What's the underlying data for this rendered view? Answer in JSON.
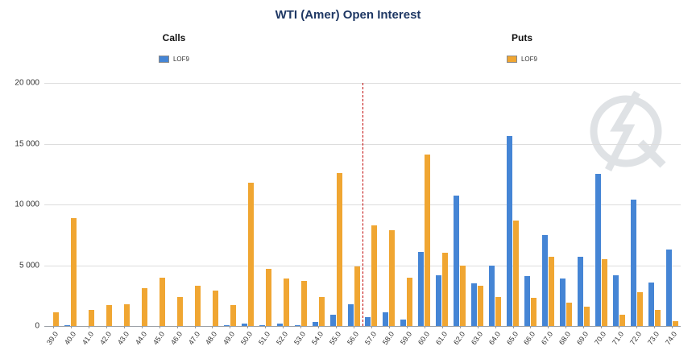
{
  "header": {
    "title": "WTI (Amer) Open Interest"
  },
  "legend": {
    "calls_label": "Calls",
    "puts_label": "Puts",
    "calls_series": "LOF9",
    "puts_series": "LOF9",
    "calls_color": "#4585D5",
    "puts_color": "#F0A632"
  },
  "chart_data": {
    "type": "bar",
    "title": "WTI (Amer) Open Interest",
    "xlabel": "",
    "ylabel": "",
    "ylim": [
      0,
      20000
    ],
    "ytick_labels": [
      "0",
      "5 000",
      "10 000",
      "15 000",
      "20 000"
    ],
    "grid": true,
    "legend_position": "top",
    "categories": [
      "39.0",
      "40.0",
      "41.0",
      "42.0",
      "43.0",
      "44.0",
      "45.0",
      "46.0",
      "47.0",
      "48.0",
      "49.0",
      "50.0",
      "51.0",
      "52.0",
      "53.0",
      "54.0",
      "55.0",
      "56.0",
      "57.0",
      "58.0",
      "59.0",
      "60.0",
      "61.0",
      "62.0",
      "63.0",
      "64.0",
      "65.0",
      "66.0",
      "67.0",
      "68.0",
      "69.0",
      "70.0",
      "71.0",
      "72.0",
      "73.0",
      "74.0"
    ],
    "series": [
      {
        "name": "Calls LOF9",
        "color": "#4585D5",
        "values": [
          0,
          100,
          0,
          0,
          0,
          0,
          0,
          0,
          0,
          0,
          100,
          200,
          100,
          200,
          100,
          300,
          900,
          1800,
          700,
          1100,
          500,
          6100,
          4200,
          10700,
          3500,
          5000,
          15600,
          4100,
          7500,
          3900,
          5700,
          12500,
          4200,
          10400,
          3600,
          6300
        ]
      },
      {
        "name": "Puts LOF9",
        "color": "#F0A632",
        "values": [
          1100,
          8900,
          1300,
          1700,
          1800,
          3100,
          4000,
          2400,
          3300,
          2900,
          1700,
          11800,
          4700,
          3900,
          3700,
          2400,
          12600,
          4900,
          8300,
          7900,
          4000,
          14100,
          6000,
          5000,
          3300,
          2400,
          8700,
          2300,
          5700,
          1900,
          1600,
          5500,
          900,
          2800,
          1300,
          400
        ]
      }
    ],
    "annotations": [
      {
        "type": "vline",
        "x": 56.5,
        "style": "dashed",
        "color": "#C00000"
      }
    ]
  },
  "watermark": {
    "color": "#D5D9DD"
  }
}
